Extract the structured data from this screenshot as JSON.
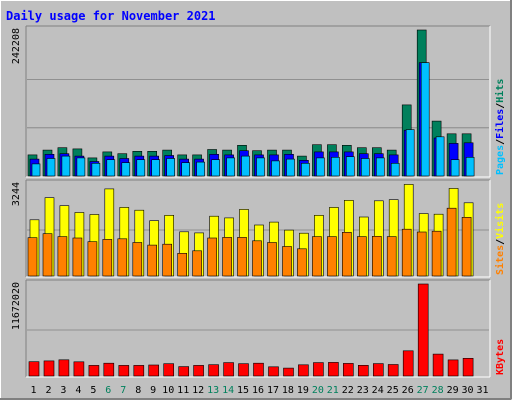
{
  "title": "Daily usage for November 2021",
  "colors": {
    "background": "#C0C0C0",
    "title_text": "#0000FF",
    "hits": "#00805C",
    "files": "#0000FF",
    "pages": "#00C0FF",
    "visits": "#FFFF00",
    "sites": "#FF8000",
    "kbytes": "#FF0000",
    "weekend_label": "#00805C",
    "weekday_label": "#000000"
  },
  "chart_data": [
    {
      "type": "bar",
      "name": "hits-files-pages",
      "ymax_label": "242208",
      "ylim": [
        0,
        242208
      ],
      "legend": [
        {
          "label": "Pages",
          "color": "#00C0FF"
        },
        {
          "label": "/",
          "color": "#000000"
        },
        {
          "label": "Files",
          "color": "#0000FF"
        },
        {
          "label": "/",
          "color": "#000000"
        },
        {
          "label": "Hits",
          "color": "#00805C"
        }
      ],
      "series": [
        {
          "name": "Hits",
          "values": [
            35000,
            43000,
            47000,
            45000,
            30000,
            40000,
            37000,
            41000,
            41000,
            43000,
            35000,
            35000,
            44000,
            43000,
            51000,
            42000,
            43000,
            43000,
            33000,
            52000,
            52000,
            51000,
            47000,
            47000,
            43000,
            118000,
            242208,
            91000,
            70000,
            70000
          ]
        },
        {
          "name": "Files",
          "values": [
            28000,
            36000,
            37000,
            33000,
            24000,
            33000,
            29000,
            33000,
            33000,
            34000,
            28000,
            28000,
            36000,
            35000,
            42000,
            35000,
            35000,
            36000,
            26000,
            40000,
            40000,
            40000,
            37000,
            37000,
            35000,
            76000,
            188000,
            63000,
            54000,
            55000
          ]
        },
        {
          "name": "Pages",
          "values": [
            20000,
            29000,
            33000,
            30000,
            21000,
            27000,
            22000,
            27000,
            27000,
            29000,
            22000,
            23000,
            27000,
            30000,
            33000,
            30000,
            25000,
            28000,
            21000,
            30000,
            31000,
            32000,
            29000,
            30000,
            21000,
            77000,
            188000,
            65000,
            27000,
            31000
          ]
        }
      ]
    },
    {
      "type": "bar",
      "name": "visits-sites",
      "ymax_label": "3244",
      "ylim": [
        0,
        3244
      ],
      "legend": [
        {
          "label": "Sites",
          "color": "#FF8000"
        },
        {
          "label": "/",
          "color": "#000000"
        },
        {
          "label": "Visits",
          "color": "#FFFF00"
        }
      ],
      "series": [
        {
          "name": "Visits",
          "values": [
            1980,
            2760,
            2480,
            2240,
            2170,
            3070,
            2420,
            2320,
            1950,
            2140,
            1560,
            1520,
            2110,
            2050,
            2350,
            1800,
            1900,
            1620,
            1510,
            2140,
            2420,
            2670,
            2080,
            2650,
            2690,
            3230,
            2200,
            2180,
            3090,
            2580
          ]
        },
        {
          "name": "Sites",
          "values": [
            1350,
            1490,
            1390,
            1340,
            1210,
            1290,
            1310,
            1180,
            1090,
            1120,
            800,
            890,
            1340,
            1360,
            1360,
            1240,
            1180,
            1040,
            960,
            1390,
            1390,
            1540,
            1390,
            1400,
            1390,
            1650,
            1550,
            1580,
            2390,
            2070
          ]
        }
      ]
    },
    {
      "type": "bar",
      "name": "kbytes",
      "ymax_label": "11672020",
      "ylim": [
        0,
        11672020
      ],
      "legend": [
        {
          "label": "KBytes",
          "color": "#FF0000"
        }
      ],
      "series": [
        {
          "name": "KBytes",
          "values": [
            1810000,
            1910000,
            2060000,
            1800000,
            1350000,
            1630000,
            1350000,
            1350000,
            1400000,
            1560000,
            1190000,
            1350000,
            1430000,
            1700000,
            1560000,
            1630000,
            1170000,
            1000000,
            1420000,
            1700000,
            1720000,
            1600000,
            1360000,
            1570000,
            1460000,
            3200000,
            11672020,
            2780000,
            2040000,
            2240000
          ]
        }
      ]
    }
  ],
  "days": [
    {
      "label": "1",
      "weekend": false
    },
    {
      "label": "2",
      "weekend": false
    },
    {
      "label": "3",
      "weekend": false
    },
    {
      "label": "4",
      "weekend": false
    },
    {
      "label": "5",
      "weekend": false
    },
    {
      "label": "6",
      "weekend": true
    },
    {
      "label": "7",
      "weekend": true
    },
    {
      "label": "8",
      "weekend": false
    },
    {
      "label": "9",
      "weekend": false
    },
    {
      "label": "10",
      "weekend": false
    },
    {
      "label": "11",
      "weekend": false
    },
    {
      "label": "12",
      "weekend": false
    },
    {
      "label": "13",
      "weekend": true
    },
    {
      "label": "14",
      "weekend": true
    },
    {
      "label": "15",
      "weekend": false
    },
    {
      "label": "16",
      "weekend": false
    },
    {
      "label": "17",
      "weekend": false
    },
    {
      "label": "18",
      "weekend": false
    },
    {
      "label": "19",
      "weekend": false
    },
    {
      "label": "20",
      "weekend": true
    },
    {
      "label": "21",
      "weekend": true
    },
    {
      "label": "22",
      "weekend": false
    },
    {
      "label": "23",
      "weekend": false
    },
    {
      "label": "24",
      "weekend": false
    },
    {
      "label": "25",
      "weekend": false
    },
    {
      "label": "26",
      "weekend": false
    },
    {
      "label": "27",
      "weekend": true
    },
    {
      "label": "28",
      "weekend": true
    },
    {
      "label": "29",
      "weekend": false
    },
    {
      "label": "30",
      "weekend": false
    },
    {
      "label": "31",
      "weekend": false
    }
  ]
}
